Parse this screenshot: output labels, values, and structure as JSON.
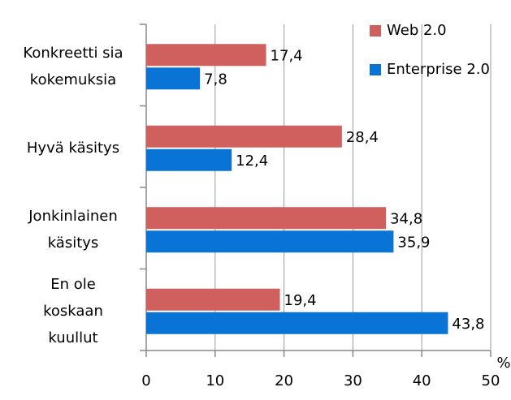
{
  "chart_data": {
    "type": "hbar",
    "categories": [
      [
        "Konkreetti  sia",
        "kokemuksia"
      ],
      [
        "Hyvä käsitys"
      ],
      [
        "Jonkinlainen",
        "käsitys"
      ],
      [
        "En ole",
        "koskaan",
        "kuullut"
      ]
    ],
    "series": [
      {
        "name": "Web 2.0",
        "color": "#d0605e",
        "values": [
          17.4,
          28.4,
          34.8,
          19.4
        ],
        "value_labels": [
          "17,4",
          "28,4",
          "34,8",
          "19,4"
        ]
      },
      {
        "name": "Enterprise 2.0",
        "color": "#0a74d6",
        "values": [
          7.8,
          12.4,
          35.9,
          43.8
        ],
        "value_labels": [
          "7,8",
          "12,4",
          "35,9",
          "43,8"
        ]
      }
    ],
    "xlim": [
      0,
      50
    ],
    "xticks": [
      0,
      10,
      20,
      30,
      40,
      50
    ],
    "xlabel": "%",
    "grid": true,
    "legend": "upper right"
  }
}
